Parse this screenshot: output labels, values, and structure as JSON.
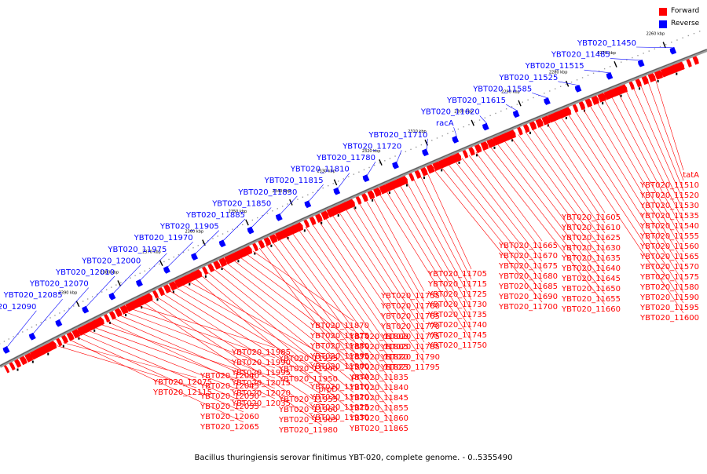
{
  "legend": {
    "forward": {
      "label": "Forward",
      "color": "#ff0000"
    },
    "reverse": {
      "label": "Reverse",
      "color": "#0000ff"
    }
  },
  "caption": "Bacillus thuringiensis serovar finitimus YBT-020, complete genome. - 0..5355490",
  "ticks": [
    "2260 kbp",
    "2270 kbp",
    "2280 kbp",
    "2290 kbp",
    "2300 kbp",
    "2310 kbp",
    "2320 kbp",
    "2330 kbp",
    "2340 kbp",
    "2350 kbp",
    "2360 kbp",
    "2370 kbp",
    "2380 kbp",
    "2390 kbp"
  ],
  "reverse_labels": [
    "YBT020_11450",
    "YBT020_11485",
    "YBT020_11515",
    "YBT020_11525",
    "YBT020_11585",
    "YBT020_11615",
    "YBT020_11620",
    "racA",
    "YBT020_11710",
    "YBT020_11720",
    "YBT020_11780",
    "YBT020_11810",
    "YBT020_11815",
    "YBT020_11830",
    "YBT020_11850",
    "YBT020_11885",
    "YBT020_11905",
    "YBT020_11970",
    "YBT020_11975",
    "YBT020_12000",
    "YBT020_12010",
    "YBT020_12070",
    "YBT020_12085",
    "YBT020_12090"
  ],
  "forward_labels": [
    "tatA",
    "YBT020_11510",
    "YBT020_11520",
    "YBT020_11530",
    "YBT020_11535",
    "YBT020_11540",
    "YBT020_11555",
    "YBT020_11560",
    "YBT020_11565",
    "YBT020_11570",
    "YBT020_11575",
    "YBT020_11580",
    "YBT020_11590",
    "YBT020_11595",
    "YBT020_11600",
    "YBT020_11605",
    "YBT020_11610",
    "YBT020_11625",
    "YBT020_11630",
    "YBT020_11635",
    "YBT020_11640",
    "YBT020_11645",
    "YBT020_11650",
    "YBT020_11655",
    "YBT020_11660",
    "YBT020_11665",
    "YBT020_11670",
    "YBT020_11675",
    "YBT020_11680",
    "YBT020_11685",
    "YBT020_11690",
    "YBT020_11700",
    "YBT020_11705",
    "YBT020_11715",
    "YBT020_11725",
    "YBT020_11730",
    "YBT020_11735",
    "YBT020_11740",
    "YBT020_11745",
    "YBT020_11750",
    "YBT020_11755",
    "YBT020_11760",
    "YBT020_11765",
    "YBT020_11770",
    "YBT020_11775",
    "YBT020_11785",
    "YBT020_11790",
    "YBT020_11795",
    "YBT020_11800",
    "YBT020_11805",
    "YBT020_11820",
    "YBT020_11825",
    "YBT020_11835",
    "YBT020_11840",
    "YBT020_11845",
    "YBT020_11855",
    "YBT020_11860",
    "YBT020_11865",
    "YBT020_11870",
    "YBT020_11875",
    "YBT020_11880",
    "YBT020_11895",
    "YBT020_11900",
    "prsA",
    "YBT020_11910",
    "YBT020_11920",
    "YBT020_11925",
    "YBT020_11930",
    "YBT020_11935",
    "YBT020_11940",
    "YBT020_11950",
    "prpD",
    "YBT020_11955",
    "YBT020_11960",
    "YBT020_11965",
    "YBT020_11980",
    "YBT020_11985",
    "YBT020_11990",
    "YBT020_11995",
    "YBT020_12015",
    "YBT020_12020",
    "YBT020_12035",
    "YBT020_12040",
    "YBT020_12045",
    "YBT020_12050",
    "YBT020_12055",
    "YBT020_12060",
    "YBT020_12065",
    "YBT020_12075",
    "YBT020_12115"
  ]
}
